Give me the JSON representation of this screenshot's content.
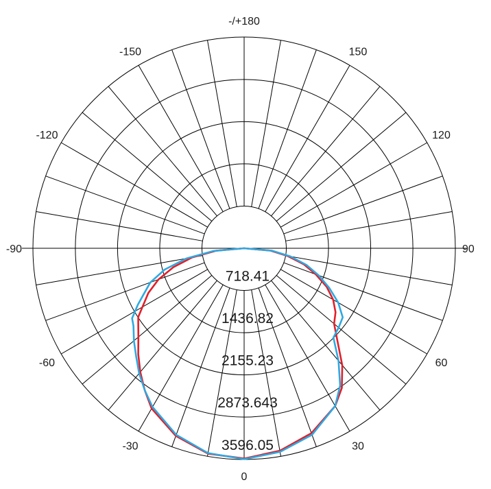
{
  "chart_data": {
    "type": "polar",
    "rmax": 3596.05,
    "radial_ticks": [
      {
        "value": 718.41,
        "label": "718.41"
      },
      {
        "value": 1436.82,
        "label": "1436.82"
      },
      {
        "value": 2155.23,
        "label": "2155.23"
      },
      {
        "value": 2873.643,
        "label": "2873.643"
      },
      {
        "value": 3596.05,
        "label": "3596.05"
      }
    ],
    "spoke_step_deg": 10,
    "angle_labels": [
      {
        "angle": 0,
        "label": "0"
      },
      {
        "angle": 30,
        "label": "30"
      },
      {
        "angle": 60,
        "label": "60"
      },
      {
        "angle": 90,
        "label": "90"
      },
      {
        "angle": 120,
        "label": "120"
      },
      {
        "angle": 150,
        "label": "150"
      },
      {
        "angle": 180,
        "label": "-/+180"
      },
      {
        "angle": -150,
        "label": "-150"
      },
      {
        "angle": -120,
        "label": "-120"
      },
      {
        "angle": -90,
        "label": "-90"
      },
      {
        "angle": -60,
        "label": "-60"
      },
      {
        "angle": -30,
        "label": "-30"
      }
    ],
    "series": [
      {
        "color": "#e0202a",
        "points": [
          [
            0,
            3580
          ],
          [
            10,
            3500
          ],
          [
            20,
            3350
          ],
          [
            30,
            3100
          ],
          [
            35,
            2900
          ],
          [
            40,
            2600
          ],
          [
            45,
            2250
          ],
          [
            50,
            2000
          ],
          [
            55,
            1900
          ],
          [
            60,
            1750
          ],
          [
            65,
            1550
          ],
          [
            70,
            1300
          ],
          [
            75,
            1050
          ],
          [
            80,
            750
          ],
          [
            85,
            450
          ],
          [
            90,
            0
          ],
          [
            -90,
            0
          ],
          [
            -85,
            480
          ],
          [
            -80,
            900
          ],
          [
            -75,
            1250
          ],
          [
            -70,
            1550
          ],
          [
            -65,
            1800
          ],
          [
            -60,
            2000
          ],
          [
            -57,
            2150
          ],
          [
            -55,
            2200
          ],
          [
            -50,
            2350
          ],
          [
            -45,
            2550
          ],
          [
            -40,
            2750
          ],
          [
            -35,
            2950
          ],
          [
            -30,
            3150
          ],
          [
            -20,
            3400
          ],
          [
            -10,
            3550
          ],
          [
            0,
            3580
          ]
        ]
      },
      {
        "color": "#30a8e0",
        "points": [
          [
            0,
            3590
          ],
          [
            10,
            3520
          ],
          [
            20,
            3380
          ],
          [
            30,
            3100
          ],
          [
            35,
            2850
          ],
          [
            40,
            2500
          ],
          [
            45,
            2150
          ],
          [
            50,
            2100
          ],
          [
            55,
            2050
          ],
          [
            60,
            1850
          ],
          [
            65,
            1600
          ],
          [
            70,
            1350
          ],
          [
            75,
            1100
          ],
          [
            80,
            800
          ],
          [
            85,
            480
          ],
          [
            90,
            0
          ],
          [
            -90,
            0
          ],
          [
            -85,
            520
          ],
          [
            -80,
            1000
          ],
          [
            -75,
            1400
          ],
          [
            -70,
            1700
          ],
          [
            -65,
            1900
          ],
          [
            -62,
            2050
          ],
          [
            -58,
            2250
          ],
          [
            -55,
            2300
          ],
          [
            -50,
            2450
          ],
          [
            -45,
            2600
          ],
          [
            -40,
            2780
          ],
          [
            -35,
            2950
          ],
          [
            -30,
            3120
          ],
          [
            -20,
            3380
          ],
          [
            -10,
            3540
          ],
          [
            0,
            3590
          ]
        ]
      }
    ]
  }
}
